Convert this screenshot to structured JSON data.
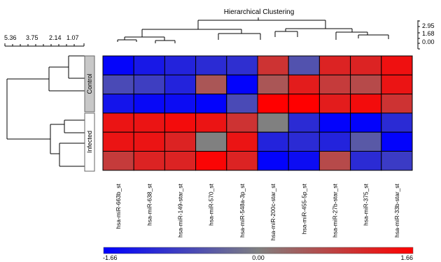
{
  "chart_data": {
    "type": "heatmap",
    "title": "Hierarchical Clustering",
    "columns": [
      "hsa-miR-663b_st",
      "hsa-miR-638_st",
      "hsa-miR-149-star_st",
      "hsa-miR-570_st",
      "hsa-miR-548a-3p_st",
      "hsa-miR-200c-star_st",
      "hsa-miR-455-5p_st",
      "hsa-miR-27b-star_st",
      "hsa-miR-375_st",
      "hsa-miR-33b-star_st"
    ],
    "groups": [
      {
        "name": "Control",
        "rows": 3
      },
      {
        "name": "Infected",
        "rows": 3
      }
    ],
    "values": [
      [
        -1.6,
        -1.35,
        -1.2,
        -1.1,
        -1.05,
        1.0,
        -0.6,
        1.2,
        1.2,
        1.45
      ],
      [
        -0.7,
        -0.85,
        -1.2,
        0.55,
        -1.62,
        0.55,
        1.3,
        0.9,
        0.7,
        1.4
      ],
      [
        -1.4,
        -1.55,
        -1.5,
        -1.62,
        -0.7,
        1.66,
        1.66,
        1.3,
        1.5,
        1.0
      ],
      [
        1.4,
        1.4,
        1.5,
        1.4,
        1.0,
        0.0,
        -1.1,
        -1.62,
        -1.62,
        -1.1
      ],
      [
        1.4,
        1.4,
        1.2,
        0.0,
        1.4,
        -1.2,
        -1.1,
        -1.2,
        -0.5,
        -1.62
      ],
      [
        0.9,
        1.2,
        1.2,
        1.6,
        1.2,
        -1.62,
        -1.5,
        0.7,
        -1.1,
        -0.9
      ]
    ],
    "color_scale": {
      "min": -1.66,
      "mid": 0.0,
      "max": 1.66,
      "min_label": "-1.66",
      "mid_label": "0.00",
      "max_label": "1.66",
      "low_color": "#0000ff",
      "mid_color": "#808080",
      "high_color": "#ff0000"
    },
    "row_dendrogram_scale": {
      "ticks": [
        "5.36",
        "3.75",
        "2.14",
        "1.07"
      ]
    },
    "col_dendrogram_scale": {
      "ticks": [
        "2.95",
        "1.68",
        "0.00"
      ]
    }
  }
}
